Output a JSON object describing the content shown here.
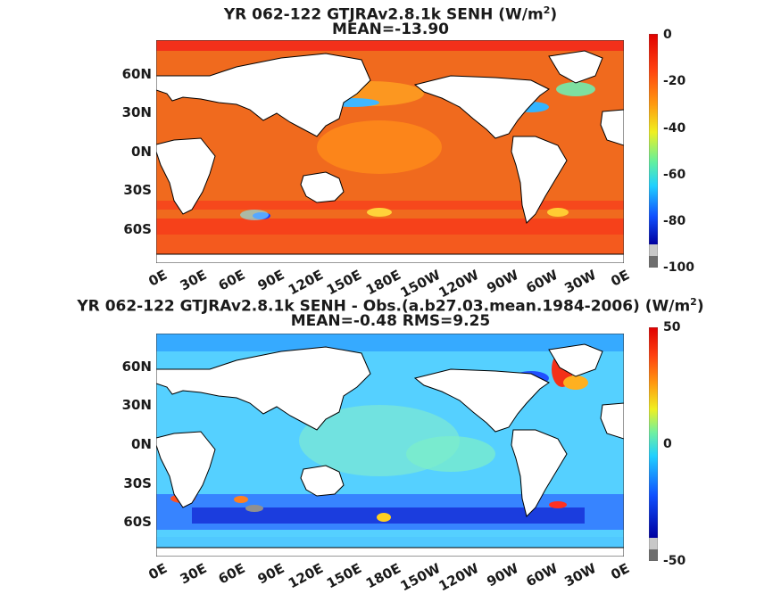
{
  "top": {
    "title_line1": "YR 062-122 GTJRAv2.8.1k  SENH (W/m",
    "title_sup": "2",
    "title_close": ")",
    "title_line2": "MEAN=-13.90",
    "colorbar_ticks": [
      "0",
      "-20",
      "-40",
      "-60",
      "-80",
      "-100"
    ]
  },
  "bottom": {
    "title_line1": "YR 062-122 GTJRAv2.8.1k SENH - Obs.(a.b27.03.mean.1984-2006) (W/m",
    "title_sup": "2",
    "title_close": ")",
    "title_line2": "MEAN=-0.48 RMS=9.25",
    "colorbar_ticks": [
      "50",
      "0",
      "-50"
    ]
  },
  "lat_labels": [
    "60N",
    "30N",
    "0N",
    "30S",
    "60S"
  ],
  "lon_labels": [
    "0E",
    "30E",
    "60E",
    "90E",
    "120E",
    "150E",
    "180E",
    "150W",
    "120W",
    "90W",
    "60W",
    "30W",
    "0E"
  ],
  "colors": {
    "land": "#ffffff",
    "coast": "#000000",
    "top_ocean": "#f0641e",
    "bottom_ocean": "#50d2ff"
  }
}
